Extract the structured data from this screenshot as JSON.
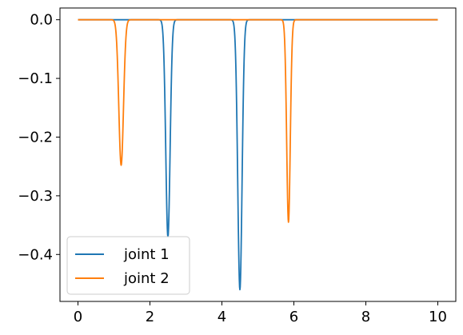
{
  "chart_data": {
    "type": "line",
    "title": "",
    "xlabel": "",
    "ylabel": "",
    "xlim": [
      -0.5,
      10.5
    ],
    "ylim": [
      -0.48,
      0.02
    ],
    "grid": false,
    "legend_position": "lower-left",
    "x_ticks": [
      {
        "value": 0,
        "label": "0"
      },
      {
        "value": 2,
        "label": "2"
      },
      {
        "value": 4,
        "label": "4"
      },
      {
        "value": 6,
        "label": "6"
      },
      {
        "value": 8,
        "label": "8"
      },
      {
        "value": 10,
        "label": "10"
      }
    ],
    "y_ticks": [
      {
        "value": 0.0,
        "label": "0.0"
      },
      {
        "value": -0.1,
        "label": "−0.1"
      },
      {
        "value": -0.2,
        "label": "−0.2"
      },
      {
        "value": -0.3,
        "label": "−0.3"
      },
      {
        "value": -0.4,
        "label": "−0.4"
      }
    ],
    "series": [
      {
        "name": "joint 1",
        "color": "#1f77b4",
        "baseline": 0.0,
        "x_range": [
          0,
          10
        ],
        "dips": [
          {
            "center": 2.5,
            "depth": -0.37,
            "width": 0.06
          },
          {
            "center": 4.5,
            "depth": -0.46,
            "width": 0.06
          }
        ]
      },
      {
        "name": "joint 2",
        "color": "#ff7f0e",
        "baseline": 0.0,
        "x_range": [
          0,
          10
        ],
        "dips": [
          {
            "center": 1.2,
            "depth": -0.248,
            "width": 0.065
          },
          {
            "center": 5.85,
            "depth": -0.345,
            "width": 0.05
          }
        ]
      }
    ]
  }
}
